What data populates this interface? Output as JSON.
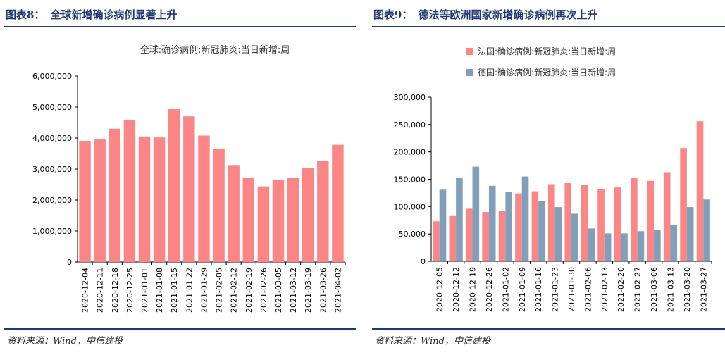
{
  "left": {
    "fig_label": "图表8：",
    "fig_title": "全球新增确诊病例显著上升",
    "source": "资料来源：Wind，中信建投"
  },
  "right": {
    "fig_label": "图表9：",
    "fig_title": "德法等欧洲国家新增确诊病例再次上升",
    "source": "资料来源：Wind，中信建投"
  },
  "chart_data": [
    {
      "type": "bar",
      "title": "全球:确诊病例:新冠肺炎:当日新增:周",
      "categories": [
        "2020-12-04",
        "2020-12-11",
        "2020-12-18",
        "2020-12-25",
        "2021-01-01",
        "2021-01-08",
        "2021-01-15",
        "2021-01-22",
        "2021-01-29",
        "2021-02-05",
        "2021-02-12",
        "2021-02-19",
        "2021-02-26",
        "2021-03-05",
        "2021-03-12",
        "2021-03-19",
        "2021-03-26",
        "2021-04-02"
      ],
      "series": [
        {
          "name": "",
          "color": "#fc8585",
          "values": [
            3910000,
            3960000,
            4300000,
            4590000,
            4050000,
            4020000,
            4930000,
            4700000,
            4080000,
            3660000,
            3130000,
            2720000,
            2440000,
            2650000,
            2720000,
            3030000,
            3270000,
            3780000
          ]
        }
      ],
      "ylim": [
        0,
        6000000
      ],
      "yticks": [
        0,
        1000000,
        2000000,
        3000000,
        4000000,
        5000000,
        6000000
      ],
      "ytick_labels": [
        "0",
        "1,000,000",
        "2,000,000",
        "3,000,000",
        "4,000,000",
        "5,000,000",
        "6,000,000"
      ],
      "xlabel": "",
      "ylabel": "",
      "grid": false,
      "legend": "none"
    },
    {
      "type": "bar",
      "title": "",
      "categories": [
        "2020-12-05",
        "2020-12-12",
        "2020-12-19",
        "2020-12-26",
        "2021-01-02",
        "2021-01-09",
        "2021-01-16",
        "2021-01-23",
        "2021-01-30",
        "2021-02-06",
        "2021-02-13",
        "2021-02-20",
        "2021-02-27",
        "2021-03-06",
        "2021-03-13",
        "2021-03-20",
        "2021-03-27"
      ],
      "series": [
        {
          "name": "法国:确诊病例:新冠肺炎:当日新增:周",
          "color": "#fc8585",
          "values": [
            73000,
            84000,
            96000,
            90000,
            92000,
            124000,
            128000,
            141000,
            143000,
            139000,
            132000,
            135000,
            153000,
            147000,
            163000,
            207000,
            256000
          ]
        },
        {
          "name": "德国:确诊病例:新冠肺炎:当日新增:周",
          "color": "#7f9fba",
          "values": [
            131000,
            152000,
            173000,
            138000,
            127000,
            155000,
            110000,
            99000,
            87000,
            60000,
            51000,
            51000,
            55000,
            58000,
            67000,
            99000,
            113000
          ]
        }
      ],
      "ylim": [
        0,
        300000
      ],
      "yticks": [
        0,
        50000,
        100000,
        150000,
        200000,
        250000,
        300000
      ],
      "ytick_labels": [
        "0",
        "50,000",
        "100,000",
        "150,000",
        "200,000",
        "250,000",
        "300,000"
      ],
      "xlabel": "",
      "ylabel": "",
      "grid": false,
      "legend": "top-left"
    }
  ]
}
